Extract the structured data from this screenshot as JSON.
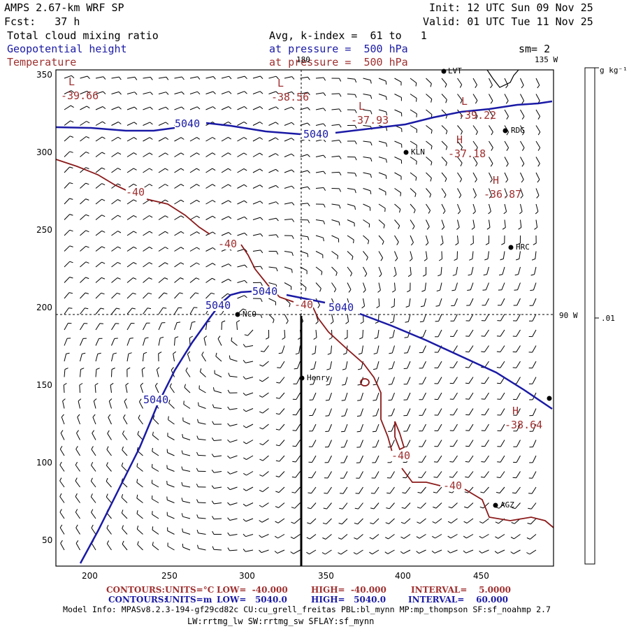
{
  "header": {
    "model": "AMPS 2.67-km WRF SP",
    "fcst": "Fcst:   37 h",
    "init": "Init: 12 UTC Sun 09 Nov 25",
    "valid": "Valid: 01 UTC Tue 11 Nov 25",
    "field1": "Total cloud mixing ratio",
    "field2": "Geopotential height",
    "field3": "Temperature",
    "avg": "Avg, k-index =  61 to   1",
    "pres1": "at pressure =  500 hPa",
    "pres2": "at pressure =  500 hPa",
    "sm": "sm= 2"
  },
  "colors": {
    "height": "#1a1aa6",
    "temperature": "#8b1a1a",
    "text_red": "#a03030"
  },
  "axes": {
    "x_ticks": [
      "200",
      "250",
      "300",
      "350",
      "400",
      "450"
    ],
    "y_ticks": [
      "350",
      "300",
      "250",
      "200",
      "150",
      "100",
      "50"
    ],
    "lon_labels": {
      "top": "180",
      "right_top": "135 W",
      "right_mid": "90 W"
    }
  },
  "colorbar": {
    "unit": "g kg⁻¹",
    "tick": ".01"
  },
  "contour_labels": {
    "height": [
      "5040",
      "5040",
      "5040",
      "5040",
      "5040",
      "5040"
    ],
    "temperature": [
      "-40",
      "-40",
      "-40",
      "-40",
      "-40"
    ]
  },
  "extrema": [
    {
      "kind": "L",
      "value": "-39.66"
    },
    {
      "kind": "L",
      "value": "-38.56"
    },
    {
      "kind": "L",
      "value": "-37.93"
    },
    {
      "kind": "L",
      "value": "-39.22"
    },
    {
      "kind": "H",
      "value": "-37.18"
    },
    {
      "kind": "H",
      "value": "-36.87"
    },
    {
      "kind": "H",
      "value": "-38.64"
    }
  ],
  "stations": [
    "RDG",
    "KLN",
    "HRC",
    "NCO",
    "Henry",
    "AGZ",
    "LVT"
  ],
  "footer": {
    "c1_title": "CONTOURS:",
    "c1_units": "UNITS=°C",
    "c1_low": "LOW=  -40.000",
    "c1_high": "HIGH=  -40.000",
    "c1_interval": "INTERVAL=    5.0000",
    "c2_title": "CONTOURS:",
    "c2_units": "UNITS=m",
    "c2_low": "LOW=   5040.0",
    "c2_high": "HIGH=   5040.0",
    "c2_interval": "INTERVAL=    60.000",
    "model_info": "Model Info: MPASv8.2.3-194-gf29cd82c CU:cu_grell_freitas PBL:bl_mynn MP:mp_thompson SF:sf_noahmp 2.7",
    "model_info2": "LW:rrtmg_lw SW:rrtmg_sw SFLAY:sf_mynn"
  }
}
